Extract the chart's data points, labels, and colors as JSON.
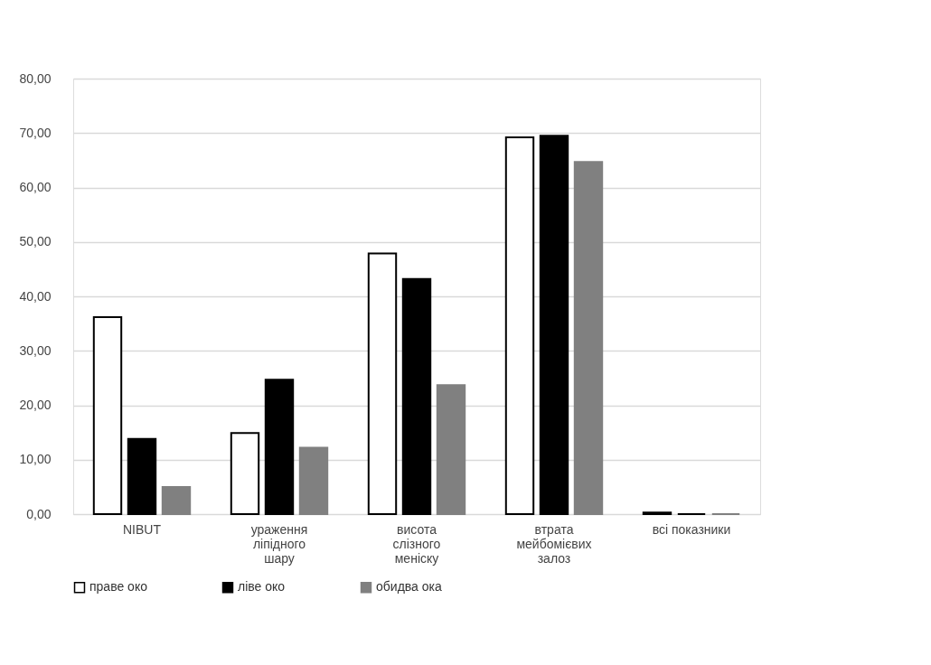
{
  "chart_data": {
    "type": "bar",
    "categories": [
      "NIBUT",
      "ураження ліпідного шару",
      "висота слізного меніску",
      "втрата мейбомієвих залоз",
      "всі показники"
    ],
    "series": [
      {
        "name": "праве око",
        "color": "#ffffff",
        "values": [
          36.2,
          14.9,
          47.9,
          69.2,
          0.3
        ]
      },
      {
        "name": "ліве око",
        "color": "#000000",
        "values": [
          13.8,
          24.7,
          43.2,
          69.5,
          0
        ]
      },
      {
        "name": "обидва ока",
        "color": "#808080",
        "values": [
          5.0,
          12.2,
          23.7,
          64.7,
          0
        ]
      }
    ],
    "ylim": [
      0,
      80
    ],
    "yticks": [
      {
        "value": 0,
        "label": "0,00"
      },
      {
        "value": 10,
        "label": "10,00"
      },
      {
        "value": 20,
        "label": "20,00"
      },
      {
        "value": 30,
        "label": "30,00"
      },
      {
        "value": 40,
        "label": "40,00"
      },
      {
        "value": 50,
        "label": "50,00"
      },
      {
        "value": 60,
        "label": "60,00"
      },
      {
        "value": 70,
        "label": "70,00"
      },
      {
        "value": 80,
        "label": "80,00"
      }
    ],
    "grid": "y",
    "legend": "bottom"
  }
}
